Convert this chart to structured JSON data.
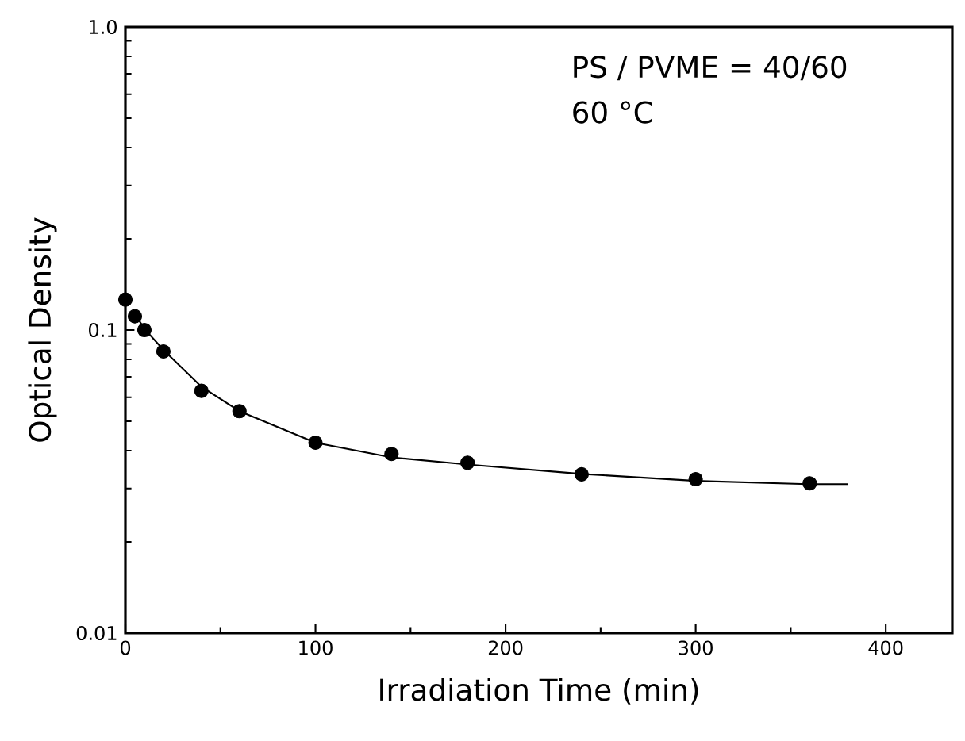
{
  "chart_data": {
    "type": "scatter",
    "xlabel": "Irradiation Time (min)",
    "ylabel": "Optical Density",
    "log": "y",
    "xlim": [
      0,
      435
    ],
    "ylim": [
      0.01,
      1
    ],
    "xticks": [
      0,
      100,
      200,
      300,
      400
    ],
    "yticks": [
      0.01,
      0.1,
      {
        "value": 1,
        "label": "1.0"
      }
    ],
    "grid": false,
    "series": [
      {
        "marker": "circle",
        "color": "#000000",
        "x": [
          0,
          5,
          10,
          20,
          40,
          60,
          100,
          140,
          180,
          240,
          300,
          360
        ],
        "values": [
          0.126,
          0.111,
          0.1,
          0.085,
          0.063,
          0.054,
          0.0425,
          0.039,
          0.0365,
          0.0334,
          0.0322,
          0.0312
        ]
      },
      {
        "type": "line",
        "marker": "none",
        "line_style": "solid",
        "color": "#000000",
        "x": [
          5,
          10,
          20,
          40,
          60,
          100,
          140,
          180,
          240,
          300,
          360,
          380
        ],
        "values": [
          0.113,
          0.101,
          0.086,
          0.065,
          0.054,
          0.0425,
          0.038,
          0.036,
          0.0335,
          0.0318,
          0.031,
          0.031
        ]
      }
    ],
    "annotations": [
      "PS / PVME = 40/60",
      "60 °C"
    ]
  }
}
